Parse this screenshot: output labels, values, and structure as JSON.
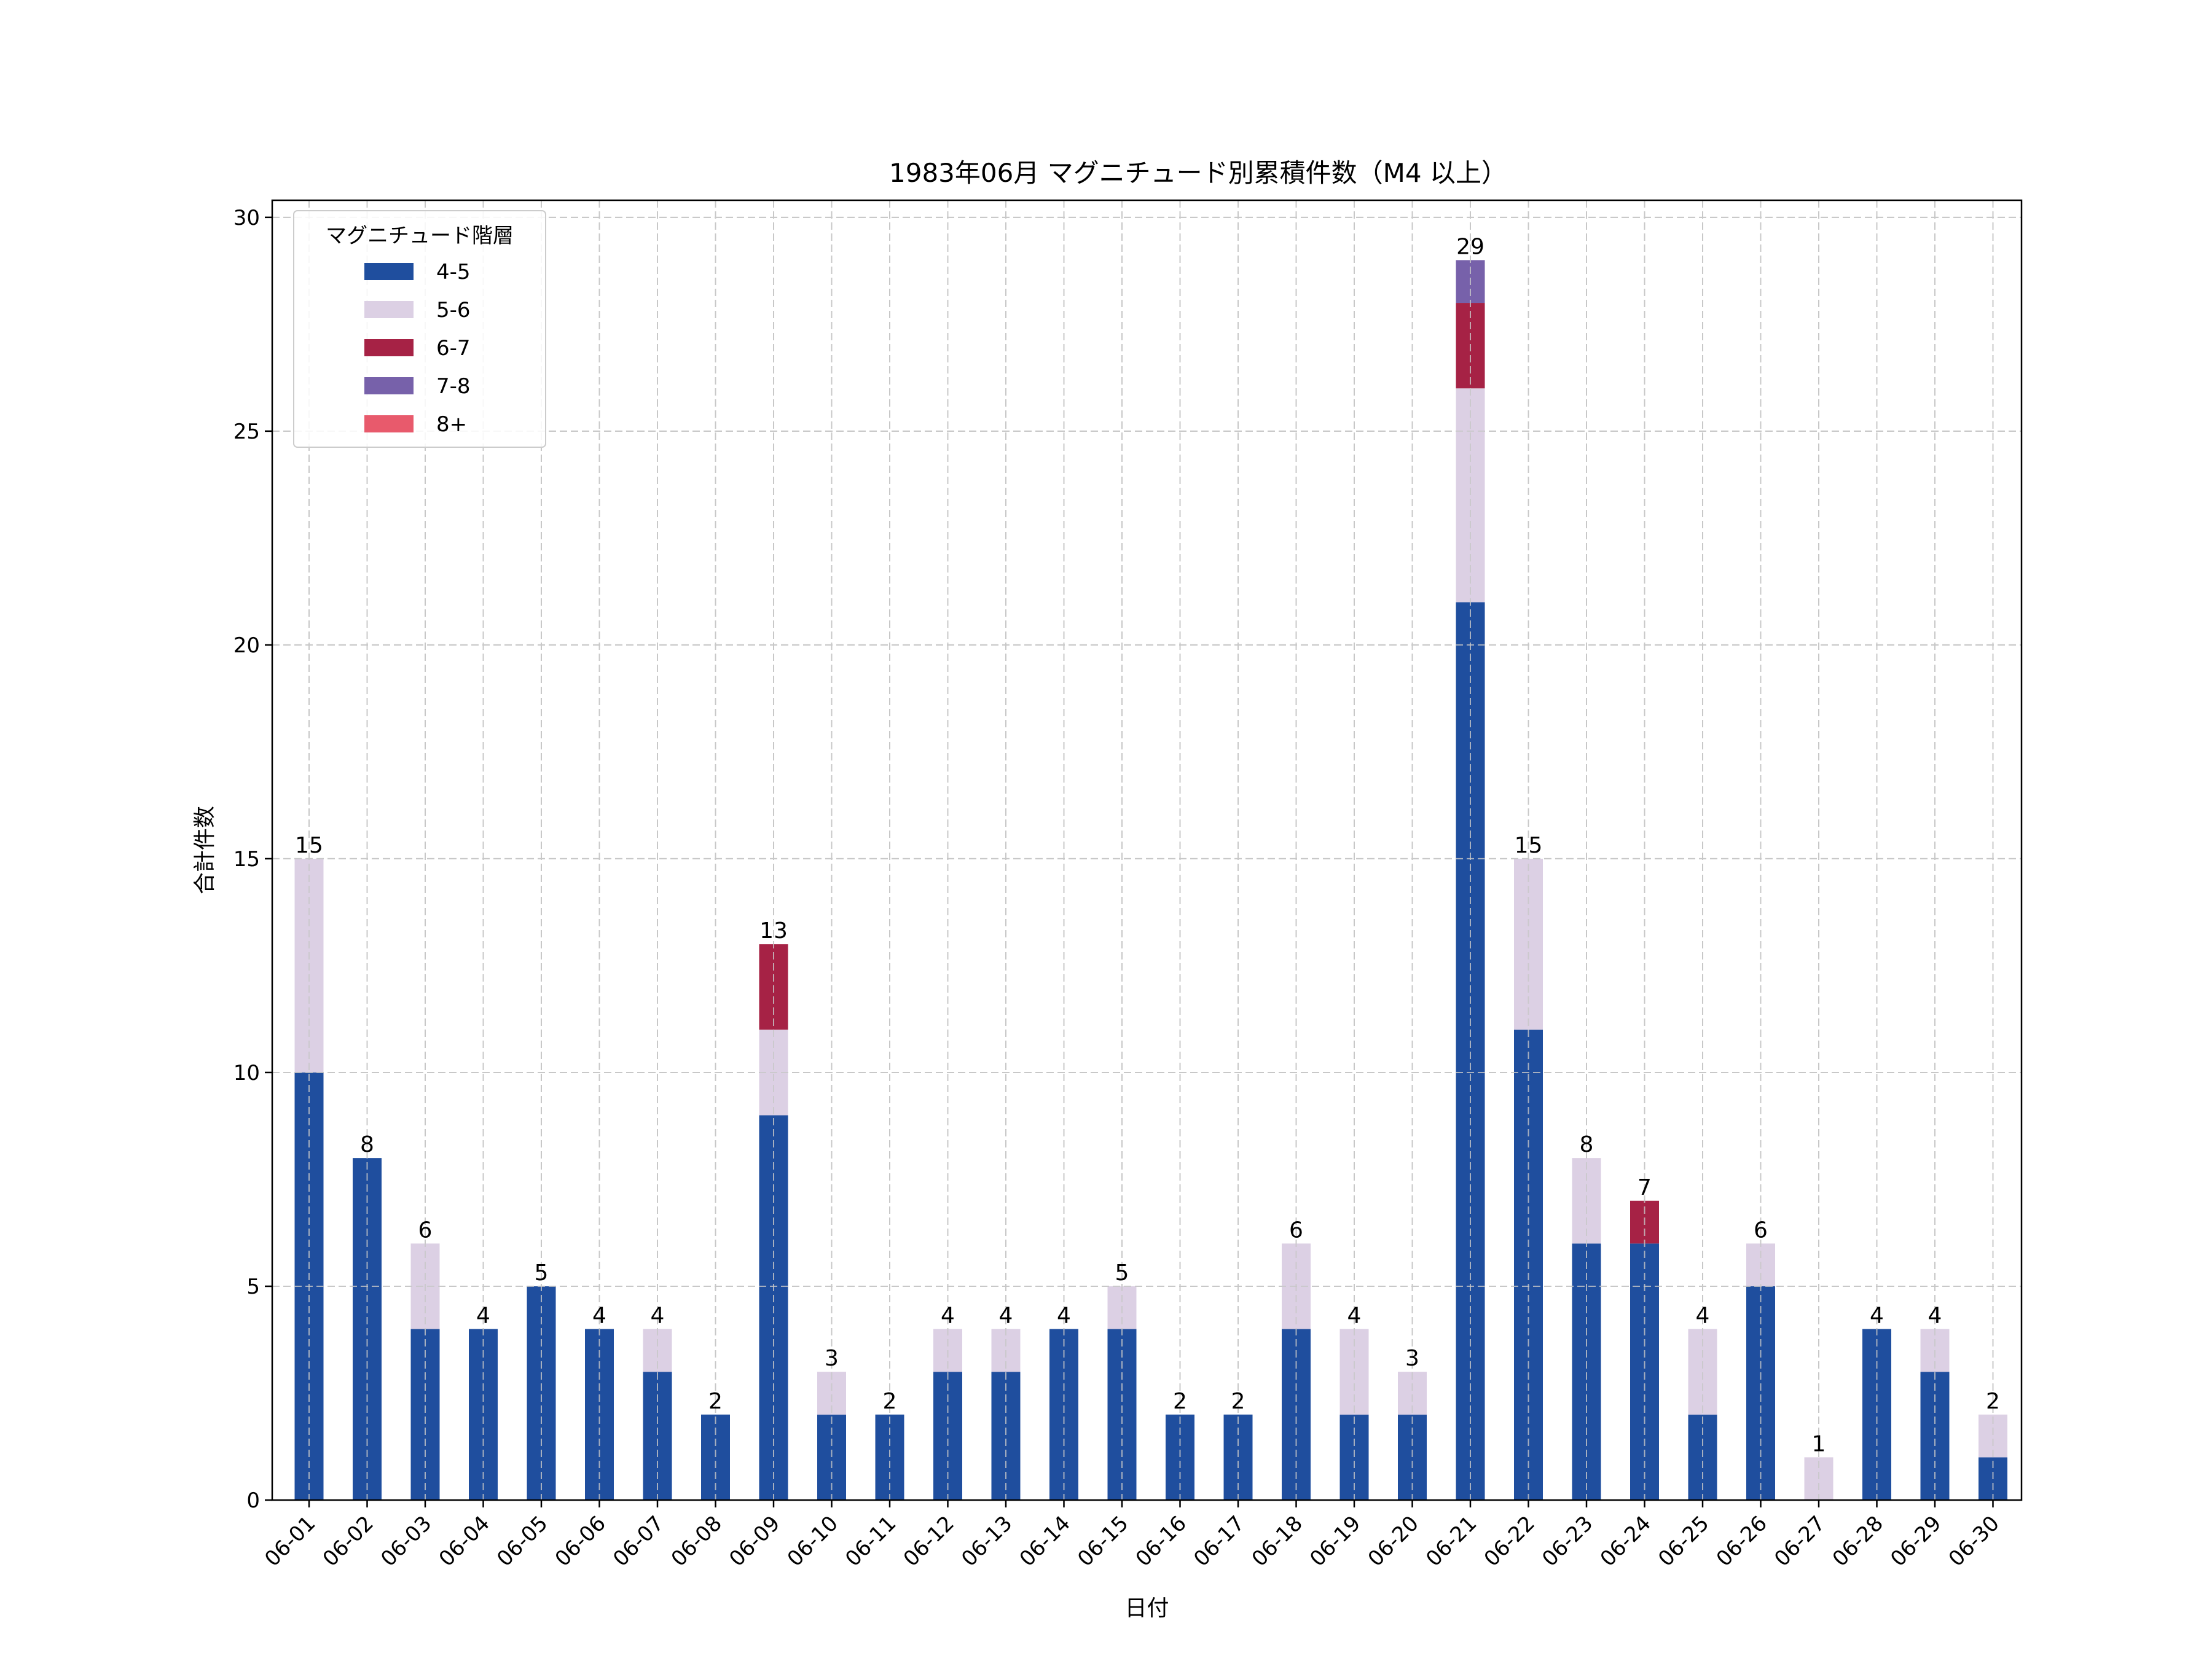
{
  "chart_data": {
    "type": "bar",
    "stacked": true,
    "title": "1983年06月 マグニチュード別累積件数（M4 以上）",
    "xlabel": "日付",
    "ylabel": "合計件数",
    "ylim": [
      0,
      30.4
    ],
    "yticks": [
      0,
      5,
      10,
      15,
      20,
      25,
      30
    ],
    "grid": true,
    "legend_title": "マグニチュード階層",
    "legend_position": "top-left",
    "categories": [
      "06-01",
      "06-02",
      "06-03",
      "06-04",
      "06-05",
      "06-06",
      "06-07",
      "06-08",
      "06-09",
      "06-10",
      "06-11",
      "06-12",
      "06-13",
      "06-14",
      "06-15",
      "06-16",
      "06-17",
      "06-18",
      "06-19",
      "06-20",
      "06-21",
      "06-22",
      "06-23",
      "06-24",
      "06-25",
      "06-26",
      "06-27",
      "06-28",
      "06-29",
      "06-30"
    ],
    "series": [
      {
        "name": "4-5",
        "color": "#1f4e9e",
        "values": [
          10,
          8,
          4,
          4,
          5,
          4,
          3,
          2,
          9,
          2,
          2,
          3,
          3,
          4,
          4,
          2,
          2,
          4,
          2,
          2,
          21,
          11,
          6,
          6,
          2,
          5,
          0,
          4,
          3,
          1
        ]
      },
      {
        "name": "5-6",
        "color": "#dcd0e4",
        "values": [
          5,
          0,
          2,
          0,
          0,
          0,
          1,
          0,
          2,
          1,
          0,
          1,
          1,
          0,
          1,
          0,
          0,
          2,
          2,
          1,
          5,
          4,
          2,
          0,
          2,
          1,
          1,
          0,
          1,
          1
        ]
      },
      {
        "name": "6-7",
        "color": "#a62245",
        "values": [
          0,
          0,
          0,
          0,
          0,
          0,
          0,
          0,
          2,
          0,
          0,
          0,
          0,
          0,
          0,
          0,
          0,
          0,
          0,
          0,
          2,
          0,
          0,
          1,
          0,
          0,
          0,
          0,
          0,
          0
        ]
      },
      {
        "name": "7-8",
        "color": "#7761aa",
        "values": [
          0,
          0,
          0,
          0,
          0,
          0,
          0,
          0,
          0,
          0,
          0,
          0,
          0,
          0,
          0,
          0,
          0,
          0,
          0,
          0,
          1,
          0,
          0,
          0,
          0,
          0,
          0,
          0,
          0,
          0
        ]
      },
      {
        "name": "8+",
        "color": "#e85a6c",
        "values": [
          0,
          0,
          0,
          0,
          0,
          0,
          0,
          0,
          0,
          0,
          0,
          0,
          0,
          0,
          0,
          0,
          0,
          0,
          0,
          0,
          0,
          0,
          0,
          0,
          0,
          0,
          0,
          0,
          0,
          0
        ]
      }
    ],
    "totals": [
      15,
      8,
      6,
      4,
      5,
      4,
      4,
      2,
      13,
      3,
      2,
      4,
      4,
      4,
      5,
      2,
      2,
      6,
      4,
      3,
      29,
      15,
      8,
      7,
      4,
      6,
      1,
      4,
      4,
      2
    ]
  }
}
